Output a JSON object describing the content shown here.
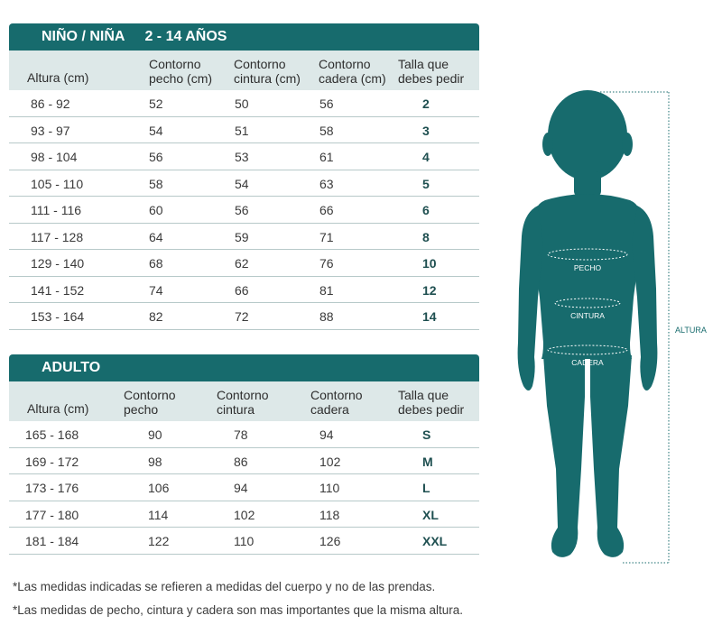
{
  "kids": {
    "title": "NIÑO / NIÑA",
    "range": "2 - 14 AÑOS",
    "headers": {
      "altura": "Altura (cm)",
      "pecho": [
        "Contorno",
        "pecho (cm)"
      ],
      "cintura": [
        "Contorno",
        "cintura (cm)"
      ],
      "cadera": [
        "Contorno",
        "cadera (cm)"
      ],
      "talla": [
        "Talla que",
        "debes pedir"
      ]
    },
    "rows": [
      {
        "altura": "86  - 92",
        "pecho": "52",
        "cintura": "50",
        "cadera": "56",
        "talla": "2"
      },
      {
        "altura": "93  - 97",
        "pecho": "54",
        "cintura": "51",
        "cadera": "58",
        "talla": "3"
      },
      {
        "altura": "98  - 104",
        "pecho": "56",
        "cintura": "53",
        "cadera": "61",
        "talla": "4"
      },
      {
        "altura": "105 - 110",
        "pecho": "58",
        "cintura": "54",
        "cadera": "63",
        "talla": "5"
      },
      {
        "altura": "111 - 116",
        "pecho": "60",
        "cintura": "56",
        "cadera": "66",
        "talla": "6"
      },
      {
        "altura": "117  - 128",
        "pecho": "64",
        "cintura": "59",
        "cadera": "71",
        "talla": "8"
      },
      {
        "altura": "129  - 140",
        "pecho": "68",
        "cintura": "62",
        "cadera": "76",
        "talla": "10"
      },
      {
        "altura": "141 - 152",
        "pecho": "74",
        "cintura": "66",
        "cadera": "81",
        "talla": "12"
      },
      {
        "altura": "153  - 164",
        "pecho": "82",
        "cintura": "72",
        "cadera": "88",
        "talla": "14"
      }
    ]
  },
  "adult": {
    "title": "ADULTO",
    "headers": {
      "altura": "Altura (cm)",
      "pecho": [
        "Contorno",
        "pecho"
      ],
      "cintura": [
        "Contorno",
        "cintura"
      ],
      "cadera": [
        "Contorno",
        "cadera"
      ],
      "talla": [
        "Talla que",
        "debes pedir"
      ]
    },
    "rows": [
      {
        "altura": "165  - 168",
        "pecho": "90",
        "cintura": "78",
        "cadera": "94",
        "talla": "S"
      },
      {
        "altura": "169  - 172",
        "pecho": "98",
        "cintura": "86",
        "cadera": "102",
        "talla": "M"
      },
      {
        "altura": "173  - 176",
        "pecho": "106",
        "cintura": "94",
        "cadera": "110",
        "talla": "L"
      },
      {
        "altura": "177  - 180",
        "pecho": "114",
        "cintura": "102",
        "cadera": "118",
        "talla": "XL"
      },
      {
        "altura": "181  - 184",
        "pecho": "122",
        "cintura": "110",
        "cadera": "126",
        "talla": "XXL"
      }
    ]
  },
  "figure": {
    "pecho": "PECHO",
    "cintura": "CINTURA",
    "cadera": "CADERA",
    "altura": "ALTURA"
  },
  "notes": [
    "*Las medidas indicadas se refieren a medidas del cuerpo y no de las prendas.",
    "*Las medidas de pecho, cintura y cadera son mas importantes que la misma altura."
  ],
  "colors": {
    "teal": "#176b6d",
    "header_bg": "#dde8e8",
    "row_line": "#b7c9c9"
  }
}
